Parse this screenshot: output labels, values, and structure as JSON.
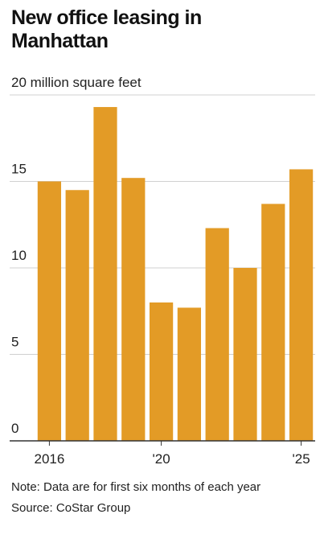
{
  "chart_data": {
    "type": "bar",
    "title": "New office leasing in Manhattan",
    "categories": [
      "2016",
      null,
      null,
      null,
      "'20",
      null,
      null,
      null,
      null,
      "'25"
    ],
    "values": [
      15.0,
      14.5,
      19.3,
      15.2,
      8.0,
      7.7,
      12.3,
      10.0,
      13.7,
      15.7
    ],
    "color": "#e39b26",
    "ylim": [
      0,
      20
    ],
    "yticks": [
      0,
      5,
      10,
      15,
      {
        "value": 20,
        "label": "20 million square feet"
      }
    ],
    "grid": true,
    "note": "Note: Data are for first six months of each year",
    "source": "Source: CoStar Group"
  }
}
